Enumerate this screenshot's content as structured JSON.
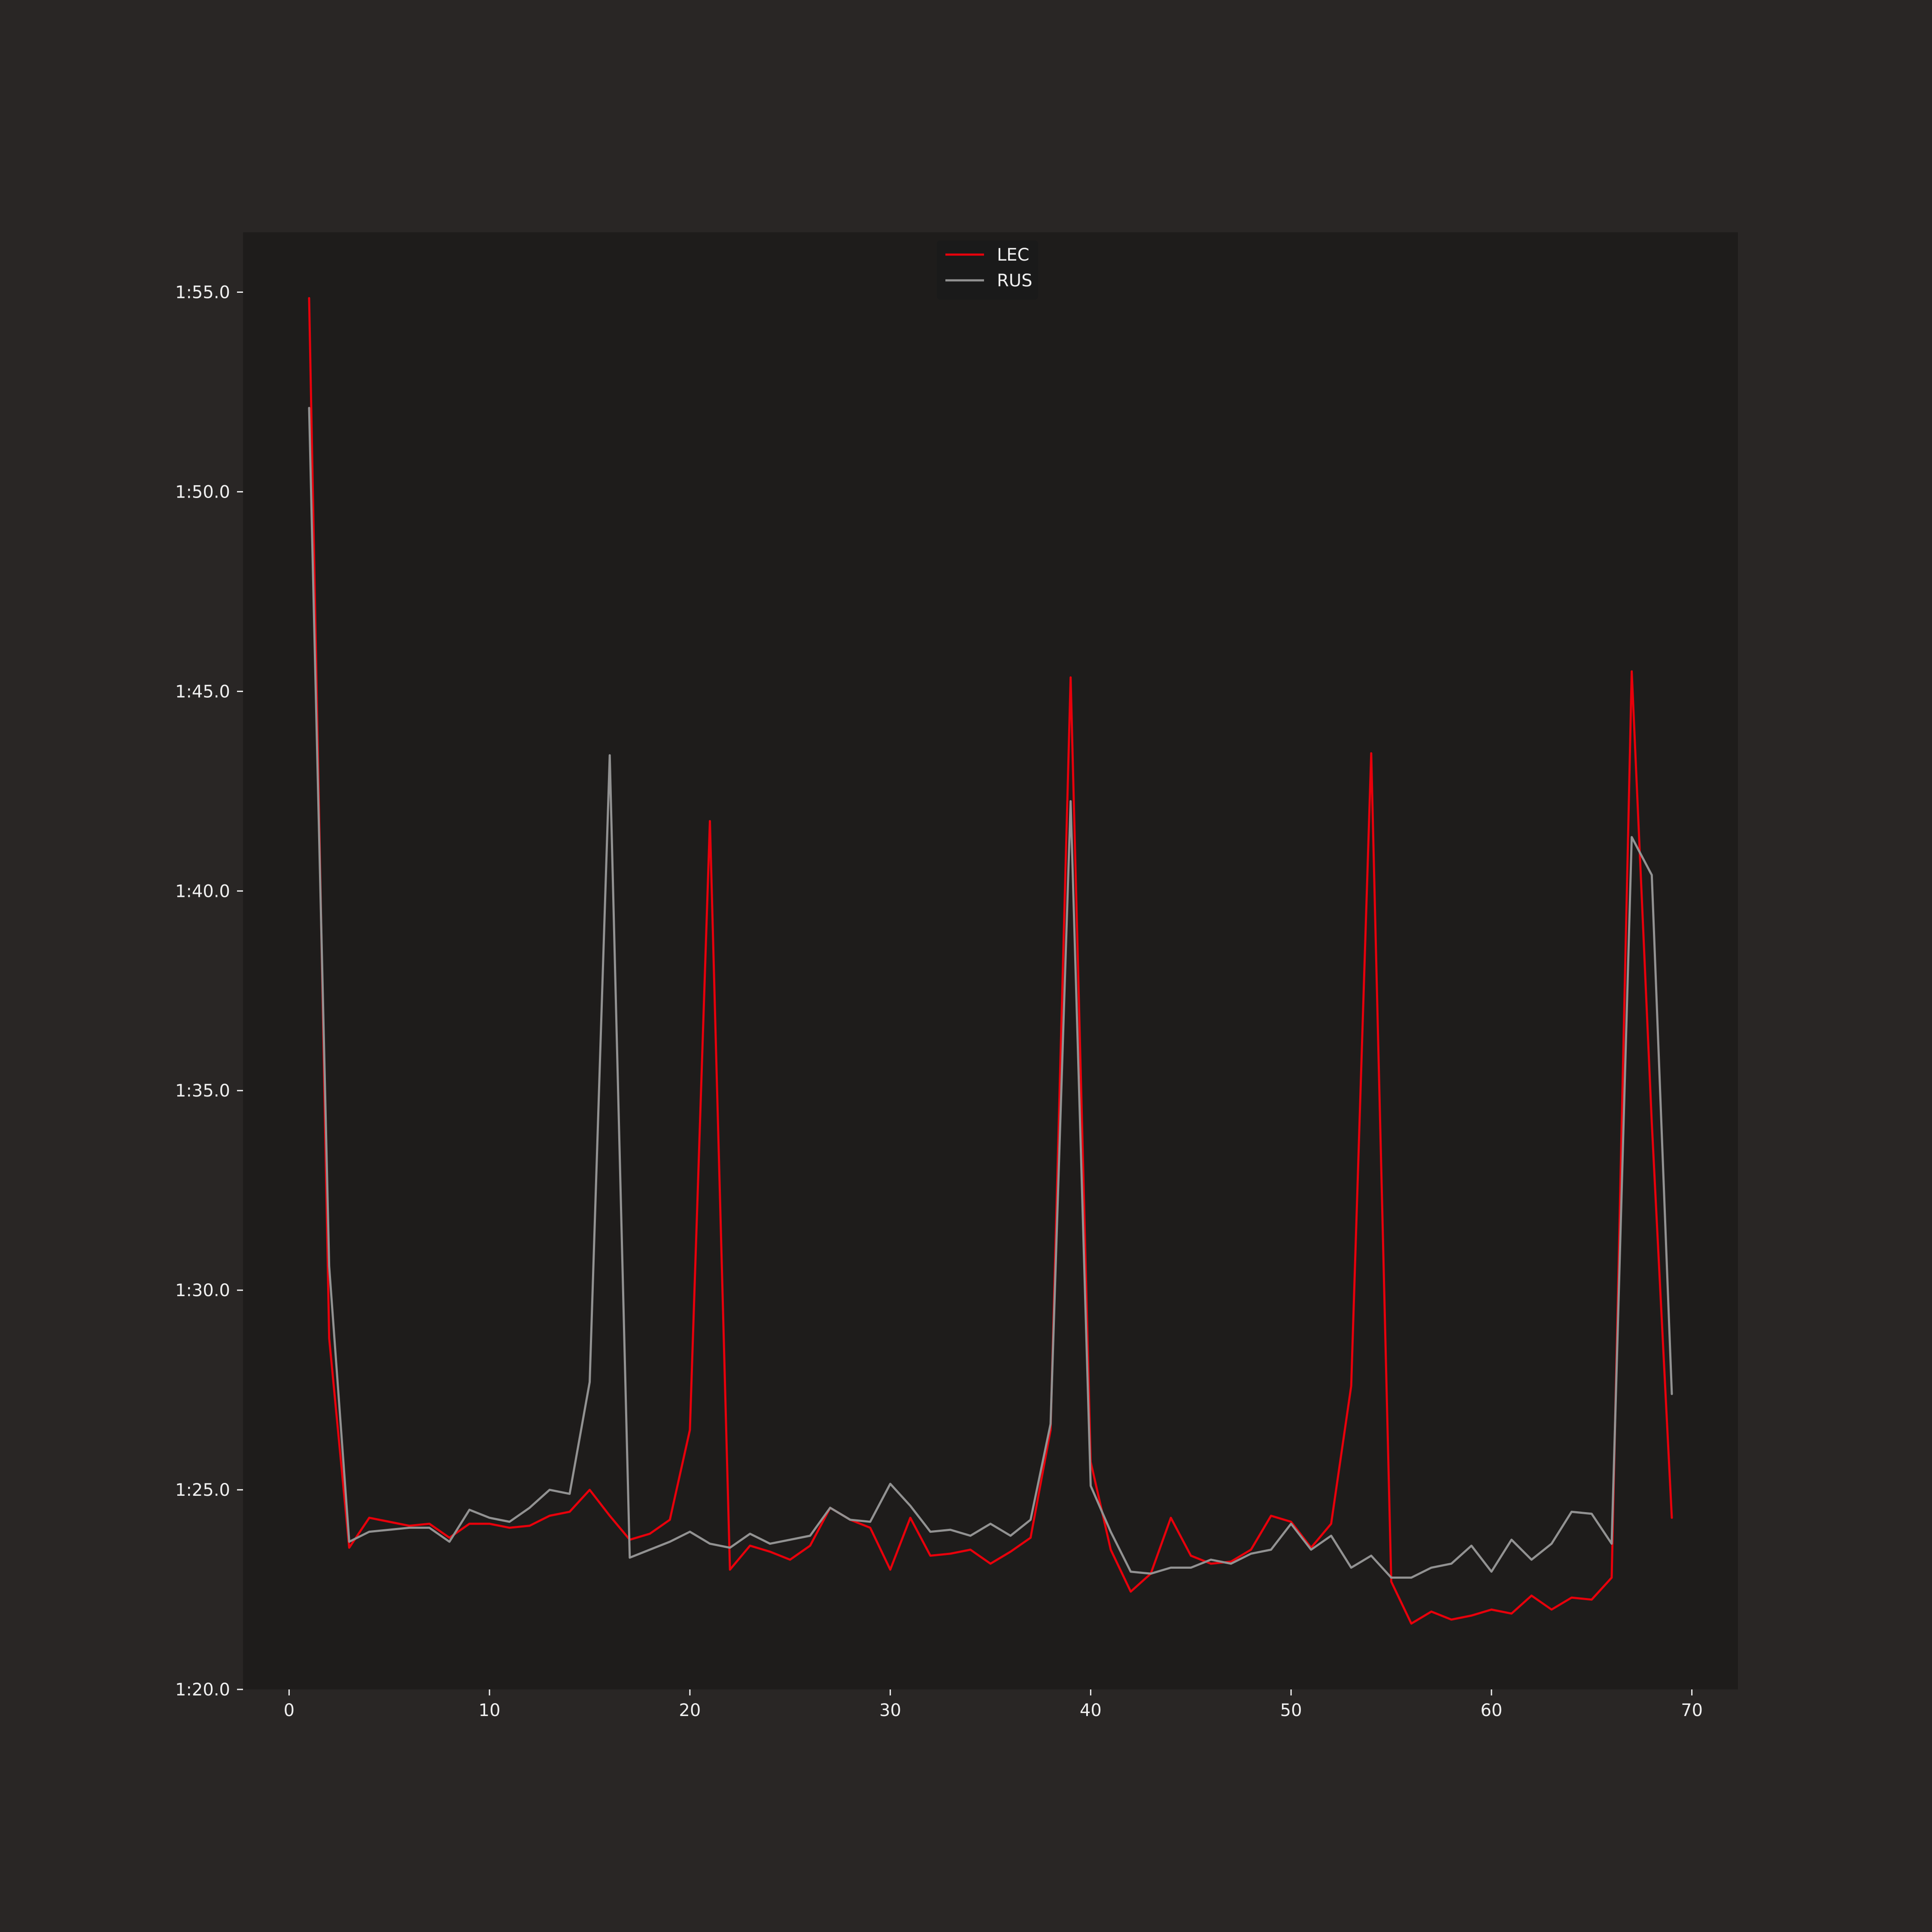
{
  "chart_data": {
    "type": "line",
    "title": "",
    "xlabel": "",
    "ylabel": "",
    "xlim": [
      -2.3,
      72.3
    ],
    "ylim_seconds": [
      80.0,
      116.5
    ],
    "x_ticks": [
      0,
      10,
      20,
      30,
      40,
      50,
      60,
      70
    ],
    "y_ticks": [
      {
        "value": 80,
        "label": "1:20.0"
      },
      {
        "value": 85,
        "label": "1:25.0"
      },
      {
        "value": 90,
        "label": "1:30.0"
      },
      {
        "value": 95,
        "label": "1:35.0"
      },
      {
        "value": 100,
        "label": "1:40.0"
      },
      {
        "value": 105,
        "label": "1:45.0"
      },
      {
        "value": 110,
        "label": "1:50.0"
      },
      {
        "value": 115,
        "label": "1:55.0"
      }
    ],
    "grid": false,
    "legend": "top-center",
    "colors": {
      "figure_bg": "#292625",
      "axes_bg": "#1e1c1b",
      "axis": "#f0f0f0"
    },
    "series": [
      {
        "name": "LEC",
        "color": "#e8000b",
        "x": [
          1,
          2,
          3,
          4,
          5,
          6,
          7,
          8,
          9,
          10,
          11,
          12,
          13,
          14,
          15,
          16,
          17,
          18,
          19,
          20,
          21,
          22,
          23,
          24,
          25,
          26,
          27,
          28,
          29,
          30,
          31,
          32,
          33,
          34,
          35,
          36,
          37,
          38,
          39,
          40,
          41,
          42,
          43,
          44,
          45,
          46,
          47,
          48,
          49,
          50,
          51,
          52,
          53,
          54,
          55,
          56,
          57,
          58,
          59,
          60,
          61,
          62,
          63,
          64,
          65,
          66,
          67,
          68,
          69
        ],
        "y": [
          114.85,
          88.8,
          83.55,
          84.3,
          84.2,
          84.1,
          84.15,
          83.8,
          84.15,
          84.15,
          84.05,
          84.1,
          84.35,
          84.45,
          85.0,
          84.35,
          83.75,
          83.9,
          84.25,
          86.5,
          101.75,
          83.0,
          83.6,
          83.45,
          83.25,
          83.6,
          84.55,
          84.25,
          84.05,
          83.0,
          84.3,
          83.35,
          83.4,
          83.5,
          83.15,
          83.45,
          83.8,
          86.5,
          105.35,
          85.7,
          83.5,
          82.45,
          82.9,
          84.3,
          83.35,
          83.15,
          83.2,
          83.5,
          84.35,
          84.2,
          83.55,
          84.15,
          87.6,
          103.45,
          82.7,
          81.65,
          81.95,
          81.75,
          81.85,
          82.0,
          81.9,
          82.35,
          82.0,
          82.3,
          82.25,
          82.8,
          105.5,
          94.2,
          84.3
        ]
      },
      {
        "name": "RUS",
        "color": "#929292",
        "x": [
          1,
          2,
          3,
          4,
          5,
          6,
          7,
          8,
          9,
          10,
          11,
          12,
          13,
          14,
          15,
          16,
          17,
          18,
          19,
          20,
          21,
          22,
          23,
          24,
          25,
          26,
          27,
          28,
          29,
          30,
          31,
          32,
          33,
          34,
          35,
          36,
          37,
          38,
          39,
          40,
          41,
          42,
          43,
          44,
          45,
          46,
          47,
          48,
          49,
          50,
          51,
          52,
          53,
          54,
          55,
          56,
          57,
          58,
          59,
          60,
          61,
          62,
          63,
          64,
          65,
          66,
          67,
          68,
          69
        ],
        "y": [
          112.1,
          90.6,
          83.7,
          83.95,
          84.0,
          84.05,
          84.05,
          83.7,
          84.5,
          84.3,
          84.2,
          84.55,
          85.0,
          84.9,
          87.7,
          103.4,
          83.3,
          83.5,
          83.7,
          83.95,
          83.65,
          83.55,
          83.9,
          83.65,
          83.75,
          83.85,
          84.55,
          84.25,
          84.2,
          85.15,
          84.6,
          83.95,
          84.0,
          83.85,
          84.15,
          83.85,
          84.25,
          86.65,
          102.25,
          85.1,
          83.95,
          82.95,
          82.9,
          83.05,
          83.05,
          83.25,
          83.15,
          83.4,
          83.5,
          84.15,
          83.5,
          83.85,
          83.05,
          83.35,
          82.8,
          82.8,
          83.05,
          83.15,
          83.6,
          82.95,
          83.75,
          83.25,
          83.65,
          84.45,
          84.4,
          83.65,
          101.35,
          100.4,
          87.4
        ]
      }
    ]
  }
}
